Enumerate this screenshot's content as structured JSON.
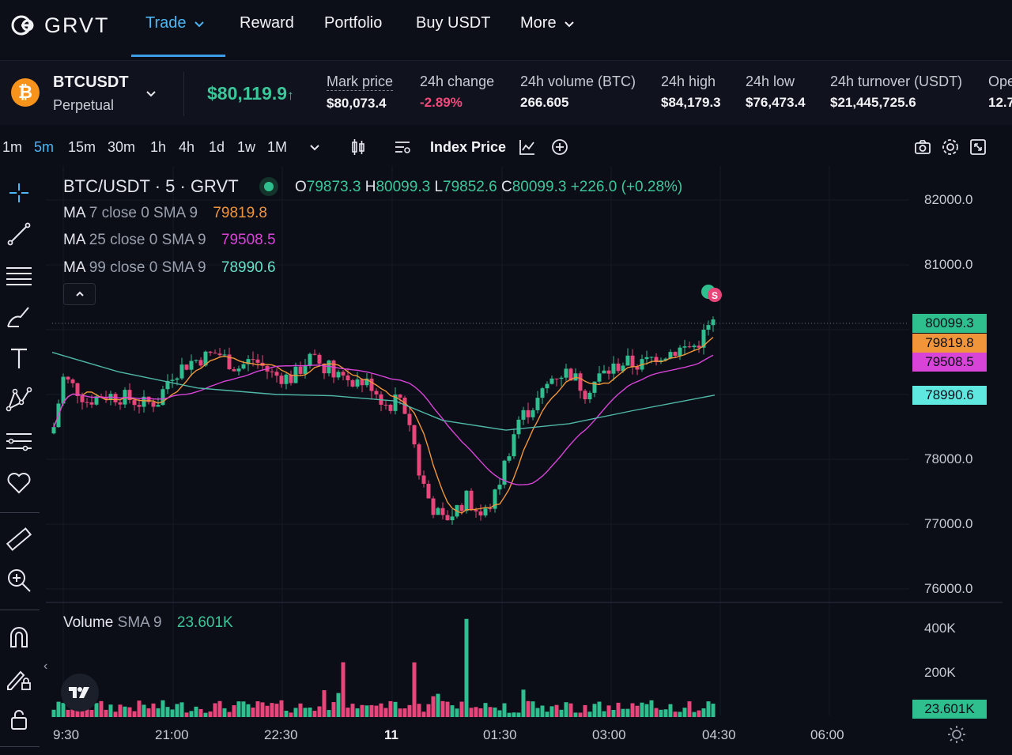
{
  "nav": {
    "logo": "GRVT",
    "items": [
      {
        "label": "Trade",
        "active": true,
        "has_dropdown": true
      },
      {
        "label": "Reward",
        "active": false,
        "has_dropdown": false
      },
      {
        "label": "Portfolio",
        "active": false,
        "has_dropdown": false
      },
      {
        "label": "Buy USDT",
        "active": false,
        "has_dropdown": false
      },
      {
        "label": "More",
        "active": false,
        "has_dropdown": true
      }
    ]
  },
  "ticker": {
    "coin_icon": "bitcoin-icon",
    "symbol": "BTCUSDT",
    "contract_type": "Perpetual",
    "last_price": "$80,119.9",
    "last_price_arrow": "↑",
    "stats": [
      {
        "label": "Mark price",
        "value": "$80,073.4"
      },
      {
        "label": "24h change",
        "value": "-2.89%"
      },
      {
        "label": "24h volume (BTC)",
        "value": "266.605"
      },
      {
        "label": "24h high",
        "value": "$84,179.3"
      },
      {
        "label": "24h low",
        "value": "$76,473.4"
      },
      {
        "label": "24h turnover (USDT)",
        "value": "$21,445,725.6"
      },
      {
        "label": "Ope",
        "value": "12.7"
      }
    ]
  },
  "toolbar": {
    "timeframes": [
      "1m",
      "5m",
      "15m",
      "30m",
      "1h",
      "4h",
      "1d",
      "1w",
      "1M"
    ],
    "active_timeframe": "5m",
    "index_price_label": "Index Price"
  },
  "chart": {
    "title": "BTC/USDT · 5 · GRVT",
    "ohlc": {
      "o": "79873.3",
      "h": "80099.3",
      "l": "79852.6",
      "c": "80099.3",
      "change": "+226.0 (+0.28%)"
    },
    "ma": [
      {
        "label": "MA",
        "params": "7 close 0 SMA 9",
        "value": "79819.8",
        "color": "#f0953a"
      },
      {
        "label": "MA",
        "params": "25 close 0 SMA 9",
        "value": "79508.5",
        "color": "#d843d8"
      },
      {
        "label": "MA",
        "params": "99 close 0 SMA 9",
        "value": "78990.6",
        "color": "#66e0c8"
      }
    ],
    "price_axis": [
      "82000.0",
      "81000.0",
      "78000.0",
      "77000.0",
      "76000.0"
    ],
    "price_tags": [
      {
        "value": "80099.3",
        "color": "#2fbf8f"
      },
      {
        "value": "79819.8",
        "color": "#f0953a"
      },
      {
        "value": "79508.5",
        "color": "#d843d8"
      },
      {
        "value": "78990.6",
        "color": "#5ee8e0"
      }
    ],
    "trade_marker": "S",
    "volume": {
      "label": "Volume",
      "params": "SMA 9",
      "value": "23.601K",
      "axis": [
        "400K",
        "200K"
      ],
      "tag": "23.601K"
    },
    "time_axis": [
      "9:30",
      "21:00",
      "22:30",
      "11",
      "01:30",
      "03:00",
      "04:30",
      "06:00"
    ]
  },
  "chart_data": {
    "type": "candlestick",
    "title": "BTC/USDT · 5 · GRVT",
    "y_range": [
      76000,
      82000
    ],
    "candles": [],
    "colors": {
      "up": "#2fbf8f",
      "down": "#e8457a"
    }
  }
}
